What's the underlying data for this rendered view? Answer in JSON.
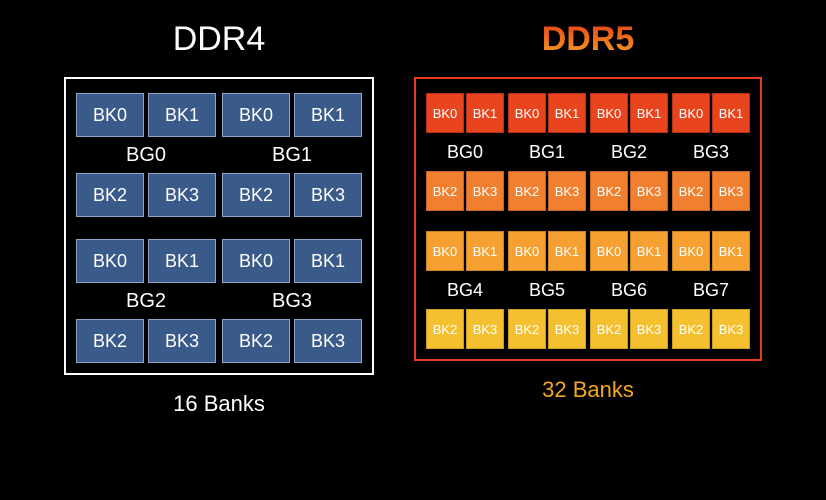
{
  "ddr4": {
    "title": "DDR4",
    "caption": "16 Banks",
    "border_color": "#ffffff",
    "title_color": "#ffffff",
    "caption_color": "#ffffff",
    "cell_bg": "#3a5a8a",
    "cell_border": "#8aa5c8",
    "cell_text": "#ffffff",
    "groups_per_row": 2,
    "group_rows": 2,
    "bank_groups": [
      {
        "label": "BG0",
        "top": [
          "BK0",
          "BK1"
        ],
        "bottom": [
          "BK2",
          "BK3"
        ]
      },
      {
        "label": "BG1",
        "top": [
          "BK0",
          "BK1"
        ],
        "bottom": [
          "BK2",
          "BK3"
        ]
      },
      {
        "label": "BG2",
        "top": [
          "BK0",
          "BK1"
        ],
        "bottom": [
          "BK2",
          "BK3"
        ]
      },
      {
        "label": "BG3",
        "top": [
          "BK0",
          "BK1"
        ],
        "bottom": [
          "BK2",
          "BK3"
        ]
      }
    ]
  },
  "ddr5": {
    "title": "DDR5",
    "caption": "32 Banks",
    "border_color": "#e83c1a",
    "title_gradient_top": "#e83c1a",
    "title_gradient_bottom": "#f5a623",
    "caption_color": "#f5a623",
    "cell_text": "#ffffff",
    "groups_per_row": 4,
    "group_rows": 2,
    "row_colors": [
      {
        "bg": "#e8451f",
        "border": "#b83215"
      },
      {
        "bg": "#f08030",
        "border": "#c86420"
      },
      {
        "bg": "#f5a030",
        "border": "#cc8420"
      },
      {
        "bg": "#f5c030",
        "border": "#cc9e20"
      }
    ],
    "bank_groups": [
      {
        "label": "BG0",
        "top": [
          "BK0",
          "BK1"
        ],
        "bottom": [
          "BK2",
          "BK3"
        ]
      },
      {
        "label": "BG1",
        "top": [
          "BK0",
          "BK1"
        ],
        "bottom": [
          "BK2",
          "BK3"
        ]
      },
      {
        "label": "BG2",
        "top": [
          "BK0",
          "BK1"
        ],
        "bottom": [
          "BK2",
          "BK3"
        ]
      },
      {
        "label": "BG3",
        "top": [
          "BK0",
          "BK1"
        ],
        "bottom": [
          "BK2",
          "BK3"
        ]
      },
      {
        "label": "BG4",
        "top": [
          "BK0",
          "BK1"
        ],
        "bottom": [
          "BK2",
          "BK3"
        ]
      },
      {
        "label": "BG5",
        "top": [
          "BK0",
          "BK1"
        ],
        "bottom": [
          "BK2",
          "BK3"
        ]
      },
      {
        "label": "BG6",
        "top": [
          "BK0",
          "BK1"
        ],
        "bottom": [
          "BK2",
          "BK3"
        ]
      },
      {
        "label": "BG7",
        "top": [
          "BK0",
          "BK1"
        ],
        "bottom": [
          "BK2",
          "BK3"
        ]
      }
    ]
  }
}
